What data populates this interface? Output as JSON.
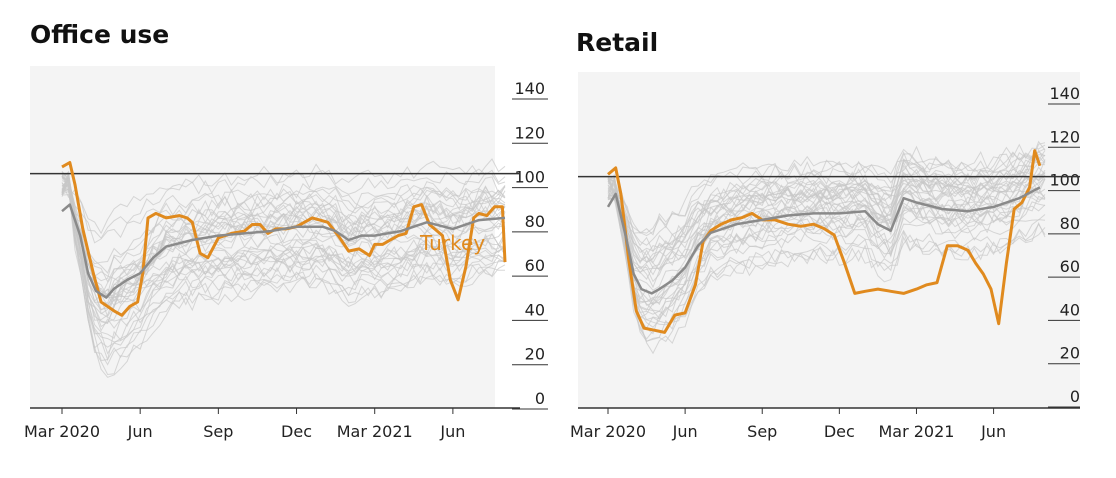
{
  "chart_data": [
    {
      "type": "line",
      "title": "Office use",
      "xlabel": "",
      "ylabel": "",
      "ylim": [
        0,
        140
      ],
      "y_ticks": [
        0,
        20,
        40,
        60,
        80,
        100,
        120,
        140
      ],
      "x_ticks": [
        "Mar 2020",
        "Jun",
        "Sep",
        "Dec",
        "Mar 2021",
        "Jun"
      ],
      "xlim": [
        0,
        17
      ],
      "baseline": 100,
      "annotation": "Turkey",
      "colors": {
        "highlight": "#e08a1e",
        "median": "#8a8a8a",
        "background_lines": "#c8c8c8",
        "plot_bg": "#f4f4f4",
        "baseline": "#333333"
      },
      "series": [
        {
          "name": "Turkey",
          "role": "highlight",
          "x": [
            0,
            0.3,
            0.5,
            0.8,
            1.2,
            1.5,
            2.0,
            2.3,
            2.6,
            2.9,
            3.1,
            3.3,
            3.6,
            4.0,
            4.5,
            4.8,
            5.0,
            5.3,
            5.6,
            6.0,
            6.5,
            7.0,
            7.3,
            7.6,
            7.9,
            8.2,
            8.6,
            9.0,
            9.3,
            9.6,
            9.9,
            10.2,
            10.6,
            11.0,
            11.4,
            11.8,
            12.0,
            12.3,
            12.6,
            12.9,
            13.2,
            13.5,
            13.8,
            14.1,
            14.3,
            14.6,
            14.9,
            15.2,
            15.5,
            15.8,
            16.0,
            16.3,
            16.6,
            16.9,
            17.0
          ],
          "values": [
            103,
            105,
            95,
            75,
            55,
            42,
            38,
            36,
            40,
            42,
            55,
            80,
            82,
            80,
            81,
            80,
            78,
            64,
            62,
            71,
            73,
            74,
            77,
            77,
            73,
            75,
            75,
            76,
            78,
            80,
            79,
            78,
            72,
            65,
            66,
            63,
            68,
            68,
            70,
            72,
            73,
            85,
            86,
            77,
            75,
            72,
            52,
            43,
            58,
            80,
            82,
            81,
            85,
            85,
            60
          ]
        },
        {
          "name": "",
          "role": "median",
          "x": [
            0,
            0.3,
            0.7,
            1.0,
            1.3,
            1.7,
            2.0,
            2.5,
            3.0,
            3.5,
            4.0,
            5.0,
            6.0,
            7.0,
            8.0,
            9.0,
            10.0,
            10.5,
            11.0,
            11.5,
            12.0,
            13.0,
            14.0,
            15.0,
            16.0,
            17.0
          ],
          "values": [
            83,
            86,
            72,
            55,
            47,
            44,
            48,
            52,
            55,
            62,
            67,
            70,
            72,
            73,
            74,
            76,
            76,
            74,
            70,
            72,
            72,
            74,
            78,
            75,
            79,
            80
          ]
        }
      ]
    },
    {
      "type": "line",
      "title": "Retail",
      "xlabel": "",
      "ylabel": "",
      "ylim": [
        0,
        140
      ],
      "y_ticks": [
        0,
        20,
        40,
        60,
        80,
        100,
        120,
        140
      ],
      "x_ticks": [
        "Mar 2020",
        "Jun",
        "Sep",
        "Dec",
        "Mar 2021",
        "Jun"
      ],
      "xlim": [
        0,
        17
      ],
      "baseline": 100,
      "colors": {
        "highlight": "#e08a1e",
        "median": "#8a8a8a",
        "background_lines": "#c8c8c8",
        "plot_bg": "#f4f4f4",
        "baseline": "#333333"
      },
      "series": [
        {
          "name": "Turkey",
          "role": "highlight",
          "x": [
            0,
            0.3,
            0.5,
            0.8,
            1.1,
            1.4,
            1.8,
            2.2,
            2.6,
            3.0,
            3.4,
            3.7,
            4.0,
            4.4,
            4.8,
            5.2,
            5.6,
            6.0,
            6.5,
            7.0,
            7.5,
            8.0,
            8.4,
            8.8,
            9.2,
            9.6,
            10.0,
            10.5,
            11.0,
            11.5,
            12.0,
            12.4,
            12.8,
            13.2,
            13.6,
            14.0,
            14.3,
            14.6,
            14.9,
            15.2,
            15.5,
            15.8,
            16.1,
            16.4,
            16.6,
            16.8
          ],
          "values": [
            101,
            104,
            92,
            62,
            38,
            30,
            29,
            28,
            36,
            37,
            50,
            70,
            75,
            78,
            80,
            81,
            83,
            80,
            80,
            78,
            77,
            78,
            76,
            73,
            60,
            46,
            47,
            48,
            47,
            46,
            48,
            50,
            51,
            68,
            68,
            66,
            60,
            55,
            48,
            32,
            60,
            85,
            88,
            95,
            112,
            105
          ]
        },
        {
          "name": "",
          "role": "median",
          "x": [
            0,
            0.3,
            0.7,
            1.0,
            1.3,
            1.7,
            2.0,
            2.5,
            3.0,
            3.5,
            4.0,
            5.0,
            6.0,
            7.0,
            8.0,
            9.0,
            10.0,
            10.5,
            11.0,
            11.5,
            12.0,
            13.0,
            14.0,
            15.0,
            16.0,
            16.8
          ],
          "values": [
            86,
            92,
            72,
            55,
            48,
            46,
            48,
            52,
            58,
            68,
            74,
            78,
            80,
            82,
            83,
            83,
            84,
            78,
            75,
            90,
            88,
            85,
            84,
            86,
            90,
            95
          ]
        }
      ]
    }
  ]
}
